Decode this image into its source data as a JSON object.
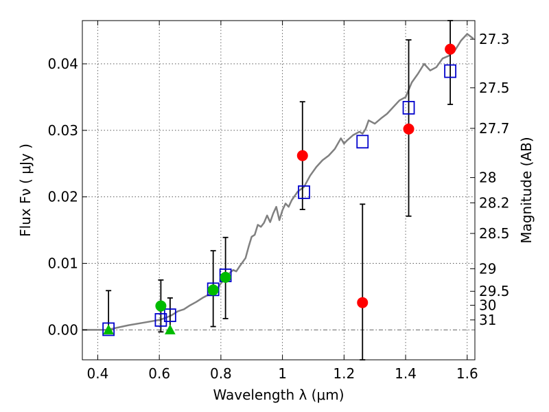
{
  "chart_data": {
    "type": "scatter",
    "title": "",
    "xlabel": "Wavelength  λ (μm)",
    "ylabel": "Flux  Fν  ( μJy )",
    "ylabel_right": "Magnitude (AB)",
    "xlim": [
      0.35,
      1.625
    ],
    "ylim": [
      -0.0045,
      0.0465
    ],
    "x_ticks": [
      0.4,
      0.6,
      0.8,
      1.0,
      1.2,
      1.4,
      1.6
    ],
    "x_tick_labels": [
      "0.4",
      "0.6",
      "0.8",
      "1",
      "1.2",
      "1.4",
      "1.6"
    ],
    "y_ticks": [
      0.0,
      0.01,
      0.02,
      0.03,
      0.04
    ],
    "y_tick_labels": [
      "0.00",
      "0.01",
      "0.02",
      "0.03",
      "0.04"
    ],
    "right_ticks": [
      {
        "label": "27.3",
        "flux": 0.0437
      },
      {
        "label": "27.5",
        "flux": 0.0364
      },
      {
        "label": "27.7",
        "flux": 0.0303
      },
      {
        "label": "28",
        "flux": 0.0229
      },
      {
        "label": "28.2",
        "flux": 0.0191
      },
      {
        "label": "28.5",
        "flux": 0.0145
      },
      {
        "label": "29",
        "flux": 0.0092
      },
      {
        "label": "29.5",
        "flux": 0.0058
      },
      {
        "label": "30",
        "flux": 0.0037
      },
      {
        "label": "31",
        "flux": 0.0015
      }
    ],
    "grid": true,
    "colors": {
      "model": "#808080",
      "red": "#ff0000",
      "green": "#00bb00",
      "blue": "#0000cc",
      "error": "#000000",
      "zero": "#555555"
    },
    "series": [
      {
        "type": "line",
        "points": [
          [
            0.35,
            0.0
          ],
          [
            0.43,
            0.0
          ],
          [
            0.46,
            0.0003
          ],
          [
            0.5,
            0.0007
          ],
          [
            0.55,
            0.0011
          ],
          [
            0.6,
            0.0015
          ],
          [
            0.62,
            0.0018
          ],
          [
            0.64,
            0.0022
          ],
          [
            0.66,
            0.0028
          ],
          [
            0.68,
            0.0031
          ],
          [
            0.7,
            0.0037
          ],
          [
            0.72,
            0.0042
          ],
          [
            0.74,
            0.0048
          ],
          [
            0.76,
            0.0053
          ],
          [
            0.78,
            0.0058
          ],
          [
            0.79,
            0.0063
          ],
          [
            0.8,
            0.007
          ],
          [
            0.81,
            0.0075
          ],
          [
            0.82,
            0.0082
          ],
          [
            0.84,
            0.009
          ],
          [
            0.85,
            0.0088
          ],
          [
            0.86,
            0.0095
          ],
          [
            0.88,
            0.0108
          ],
          [
            0.89,
            0.0125
          ],
          [
            0.9,
            0.014
          ],
          [
            0.91,
            0.0143
          ],
          [
            0.92,
            0.0158
          ],
          [
            0.93,
            0.0155
          ],
          [
            0.94,
            0.0161
          ],
          [
            0.95,
            0.0172
          ],
          [
            0.96,
            0.0162
          ],
          [
            0.97,
            0.0175
          ],
          [
            0.98,
            0.0185
          ],
          [
            0.99,
            0.0165
          ],
          [
            1.0,
            0.018
          ],
          [
            1.01,
            0.019
          ],
          [
            1.02,
            0.0185
          ],
          [
            1.03,
            0.0195
          ],
          [
            1.05,
            0.0208
          ],
          [
            1.07,
            0.0215
          ],
          [
            1.09,
            0.0232
          ],
          [
            1.11,
            0.0245
          ],
          [
            1.13,
            0.0255
          ],
          [
            1.15,
            0.0262
          ],
          [
            1.17,
            0.0272
          ],
          [
            1.19,
            0.0288
          ],
          [
            1.2,
            0.028
          ],
          [
            1.21,
            0.0285
          ],
          [
            1.23,
            0.0293
          ],
          [
            1.25,
            0.0298
          ],
          [
            1.26,
            0.0295
          ],
          [
            1.27,
            0.0302
          ],
          [
            1.28,
            0.0315
          ],
          [
            1.3,
            0.031
          ],
          [
            1.32,
            0.0318
          ],
          [
            1.34,
            0.0325
          ],
          [
            1.36,
            0.0335
          ],
          [
            1.38,
            0.0345
          ],
          [
            1.4,
            0.035
          ],
          [
            1.42,
            0.0372
          ],
          [
            1.44,
            0.0385
          ],
          [
            1.46,
            0.04
          ],
          [
            1.48,
            0.039
          ],
          [
            1.5,
            0.0395
          ],
          [
            1.52,
            0.0408
          ],
          [
            1.54,
            0.0412
          ],
          [
            1.56,
            0.042
          ],
          [
            1.58,
            0.0435
          ],
          [
            1.6,
            0.0445
          ],
          [
            1.62,
            0.0438
          ]
        ]
      },
      {
        "type": "open-square",
        "points": [
          [
            0.435,
            0.0001
          ],
          [
            0.605,
            0.0015
          ],
          [
            0.635,
            0.0022
          ],
          [
            0.775,
            0.0061
          ],
          [
            0.815,
            0.0082
          ],
          [
            1.07,
            0.0207
          ],
          [
            1.26,
            0.0283
          ],
          [
            1.41,
            0.0334
          ],
          [
            1.545,
            0.0389
          ]
        ]
      },
      {
        "type": "red-circle",
        "points": [
          [
            1.065,
            0.0262
          ],
          [
            1.26,
            0.0041
          ],
          [
            1.41,
            0.0302
          ],
          [
            1.545,
            0.0422
          ]
        ],
        "errors": [
          [
            0.0181,
            0.0343
          ],
          [
            -0.0045,
            0.0189
          ],
          [
            0.0171,
            0.0436
          ],
          [
            0.0339,
            0.0465
          ]
        ]
      },
      {
        "type": "green-circle",
        "points": [
          [
            0.605,
            0.0036
          ],
          [
            0.775,
            0.006
          ],
          [
            0.815,
            0.0079
          ]
        ],
        "errors": [
          [
            -0.0003,
            0.0075
          ],
          [
            0.0005,
            0.0119
          ],
          [
            0.0017,
            0.0139
          ]
        ]
      },
      {
        "type": "green-triangle",
        "points": [
          [
            0.435,
            0.0
          ],
          [
            0.635,
            0.0
          ]
        ],
        "errors": [
          [
            -0.0001,
            0.0059
          ],
          [
            -0.0001,
            0.0048
          ]
        ]
      }
    ]
  }
}
